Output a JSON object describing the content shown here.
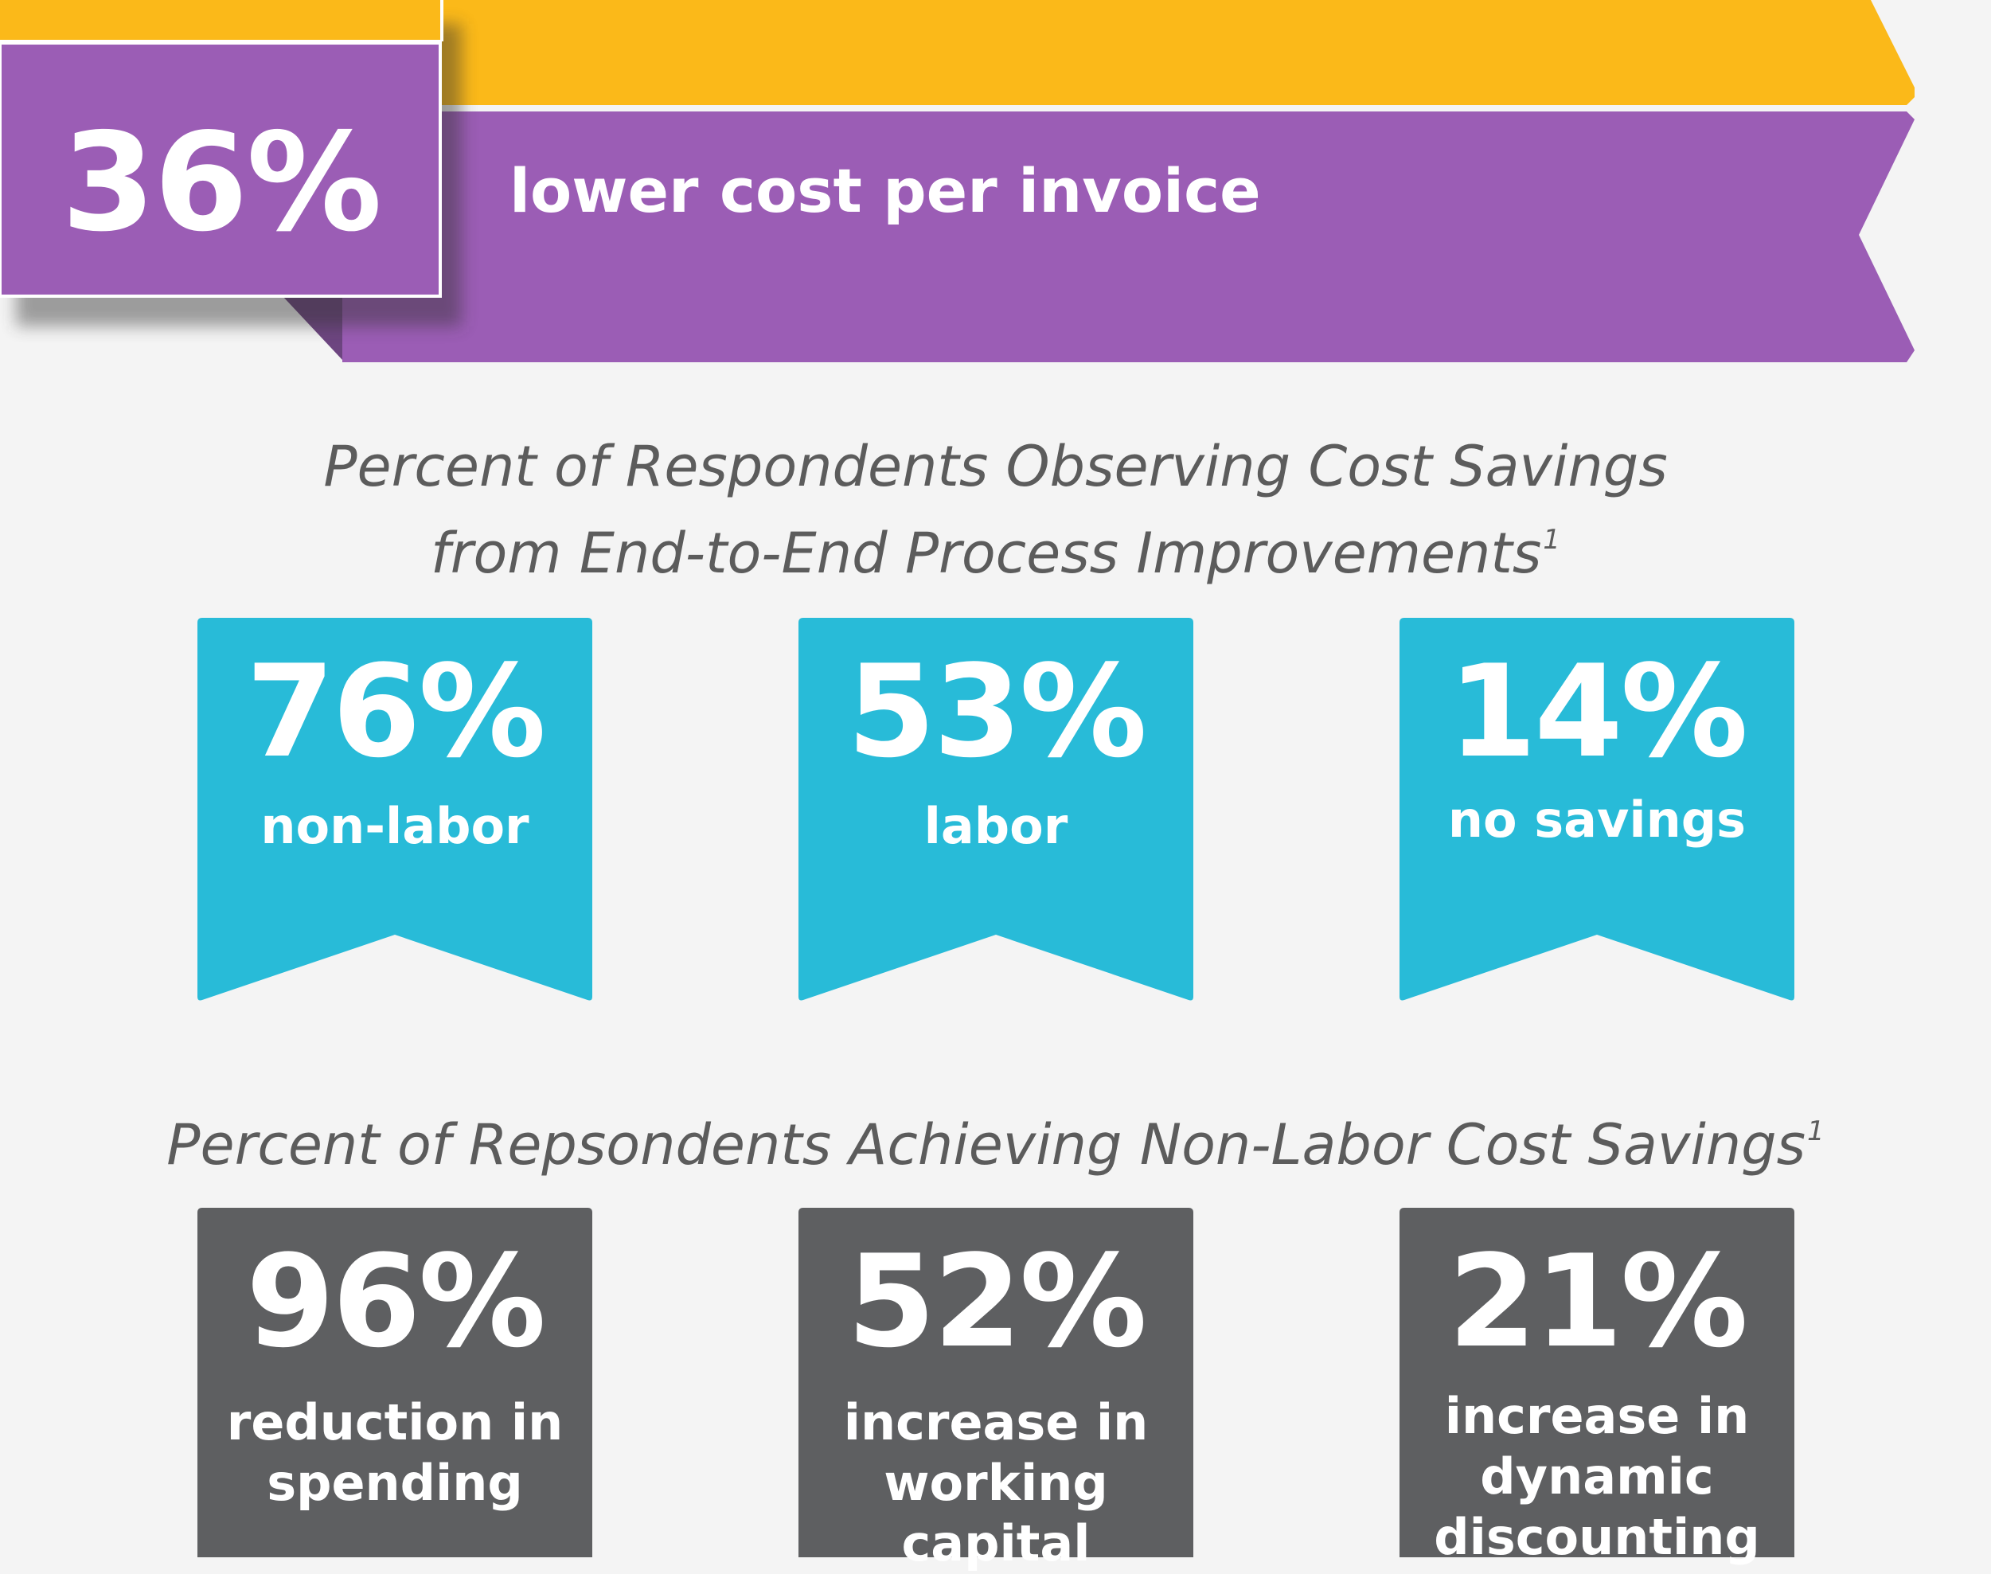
{
  "colors": {
    "background": "#f4f4f4",
    "gold": "#fbb919",
    "purple": "#9b5db5",
    "purple_dark": "#6d4580",
    "cyan": "#28bbd8",
    "gray": "#5e5f61",
    "title_gray": "#5c5c5c"
  },
  "header": {
    "stat_value": "36%",
    "stat_label": "lower cost per invoice"
  },
  "section1": {
    "title_line1": "Percent of Respondents Observing Cost Savings",
    "title_line2": "from End-to-End Process Improvements",
    "footnote": "1",
    "items": [
      {
        "value": "76%",
        "label": "non-labor"
      },
      {
        "value": "53%",
        "label": "labor"
      },
      {
        "value": "14%",
        "label": "no savings"
      }
    ]
  },
  "section2": {
    "title": "Percent of Repsondents Achieving Non-Labor Cost Savings",
    "footnote": "1",
    "items": [
      {
        "value": "96%",
        "label_line1": "reduction in",
        "label_line2": "spending",
        "label_line3": ""
      },
      {
        "value": "52%",
        "label_line1": "increase in",
        "label_line2": "working",
        "label_line3": "capital"
      },
      {
        "value": "21%",
        "label_line1": "increase in",
        "label_line2": "dynamic",
        "label_line3": "discounting"
      }
    ]
  }
}
